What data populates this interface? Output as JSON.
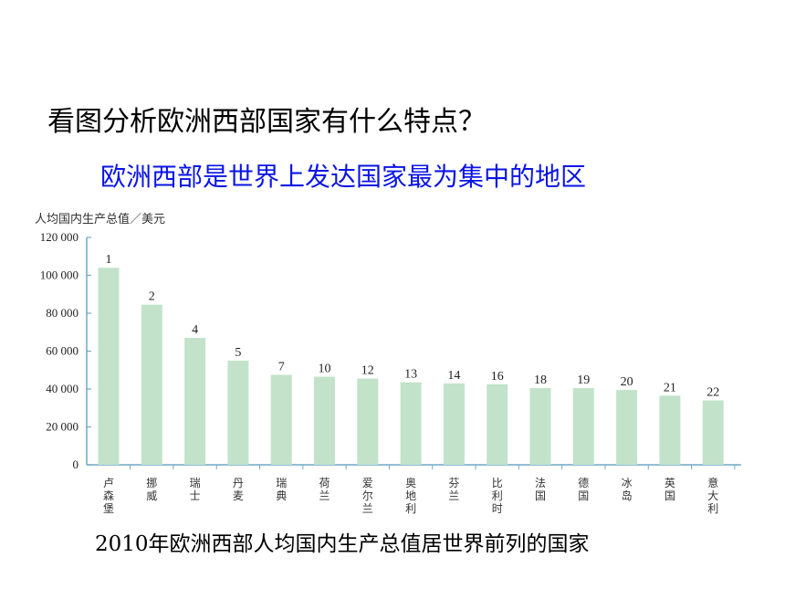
{
  "slide": {
    "question": "看图分析欧洲西部国家有什么特点？",
    "answer": "欧洲西部是世界上发达国家最为集中的地区"
  },
  "chart_data": {
    "type": "bar",
    "title": "2010年欧洲西部人均国内生产总值居世界前列的国家",
    "ylabel": "人均国内生产总值／美元",
    "xlabel": "",
    "ylim": [
      0,
      120000
    ],
    "yticks": [
      0,
      20000,
      40000,
      60000,
      80000,
      100000,
      120000
    ],
    "ytick_labels": [
      "0",
      "20 000",
      "40 000",
      "60 000",
      "80 000",
      "100 000",
      "120 000"
    ],
    "categories": [
      "卢森堡",
      "挪威",
      "瑞士",
      "丹麦",
      "瑞典",
      "荷兰",
      "爱尔兰",
      "奥地利",
      "芬兰",
      "比利时",
      "法国",
      "德国",
      "冰岛",
      "英国",
      "意大利"
    ],
    "values": [
      104000,
      84500,
      67000,
      55000,
      47500,
      46500,
      45500,
      43500,
      43000,
      42500,
      40500,
      40500,
      39500,
      36500,
      34000
    ],
    "data_labels": [
      "1",
      "2",
      "4",
      "5",
      "7",
      "10",
      "12",
      "13",
      "14",
      "16",
      "18",
      "19",
      "20",
      "21",
      "22"
    ],
    "bar_color": "#c2e3c9",
    "grid": false
  }
}
